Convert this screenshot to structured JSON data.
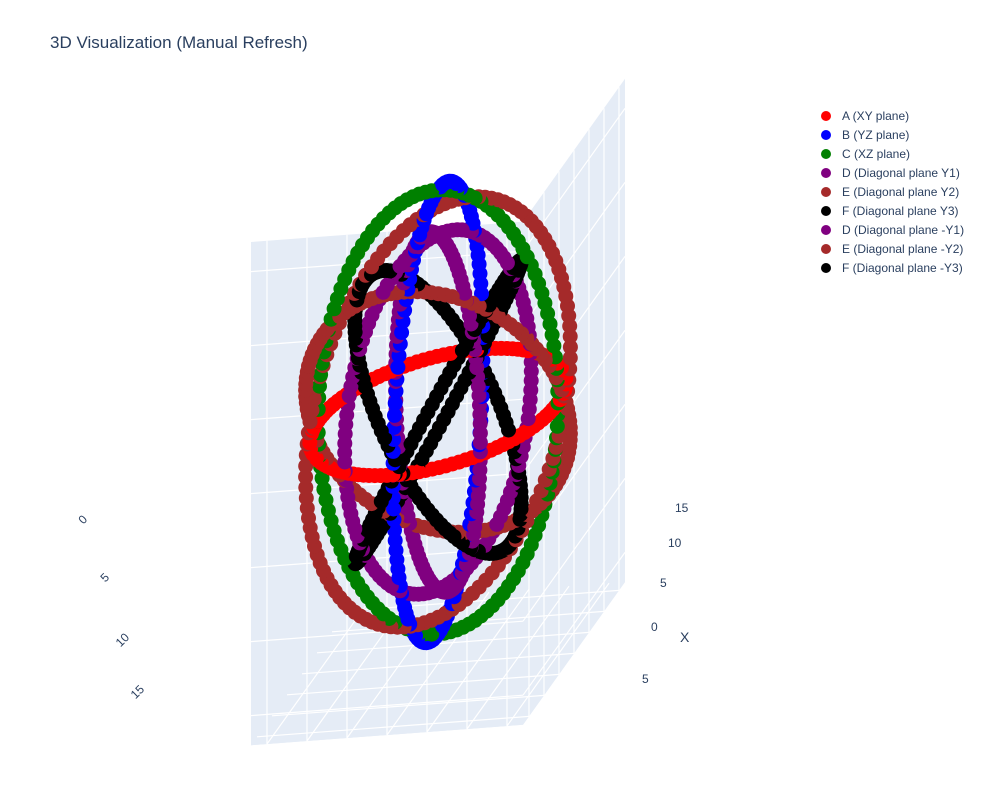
{
  "chart_data": {
    "type": "scatter3d",
    "title": "3D Visualization (Manual Refresh)",
    "axes": {
      "x": {
        "label": "X",
        "range": [
          -15,
          15
        ],
        "ticks": [
          "15",
          "10",
          "5",
          "0",
          "5"
        ]
      },
      "y": {
        "label": "",
        "range": [
          -15,
          15
        ],
        "ticks": [
          "15",
          "10",
          "5",
          "0"
        ]
      },
      "z": {
        "label": "",
        "range": [
          -15,
          15
        ],
        "ticks": []
      }
    },
    "grid": true,
    "legend_placement": "top-right",
    "series": [
      {
        "name": "A (XY plane)",
        "color": "#ff0000",
        "radius": 15,
        "normal": [
          0,
          0,
          1
        ]
      },
      {
        "name": "B (YZ plane)",
        "color": "#0000ff",
        "radius": 15,
        "normal": [
          1,
          0,
          0
        ]
      },
      {
        "name": "C (XZ plane)",
        "color": "#008000",
        "radius": 15,
        "normal": [
          0,
          1,
          0
        ]
      },
      {
        "name": "D (Diagonal plane Y1)",
        "color": "#800080",
        "radius": 12,
        "normal": [
          1,
          1,
          0
        ]
      },
      {
        "name": "E (Diagonal plane Y2)",
        "color": "#a52a2a",
        "radius": 16,
        "normal": [
          0,
          1,
          1
        ]
      },
      {
        "name": "F (Diagonal plane Y3)",
        "color": "#000000",
        "radius": 13,
        "normal": [
          1,
          0,
          1
        ]
      },
      {
        "name": "D (Diagonal plane -Y1)",
        "color": "#800080",
        "radius": 12,
        "normal": [
          1,
          -1,
          0
        ]
      },
      {
        "name": "E (Diagonal plane -Y2)",
        "color": "#a52a2a",
        "radius": 16,
        "normal": [
          0,
          -1,
          1
        ]
      },
      {
        "name": "F (Diagonal plane -Y3)",
        "color": "#000000",
        "radius": 13,
        "normal": [
          1,
          0,
          -1
        ]
      }
    ]
  }
}
